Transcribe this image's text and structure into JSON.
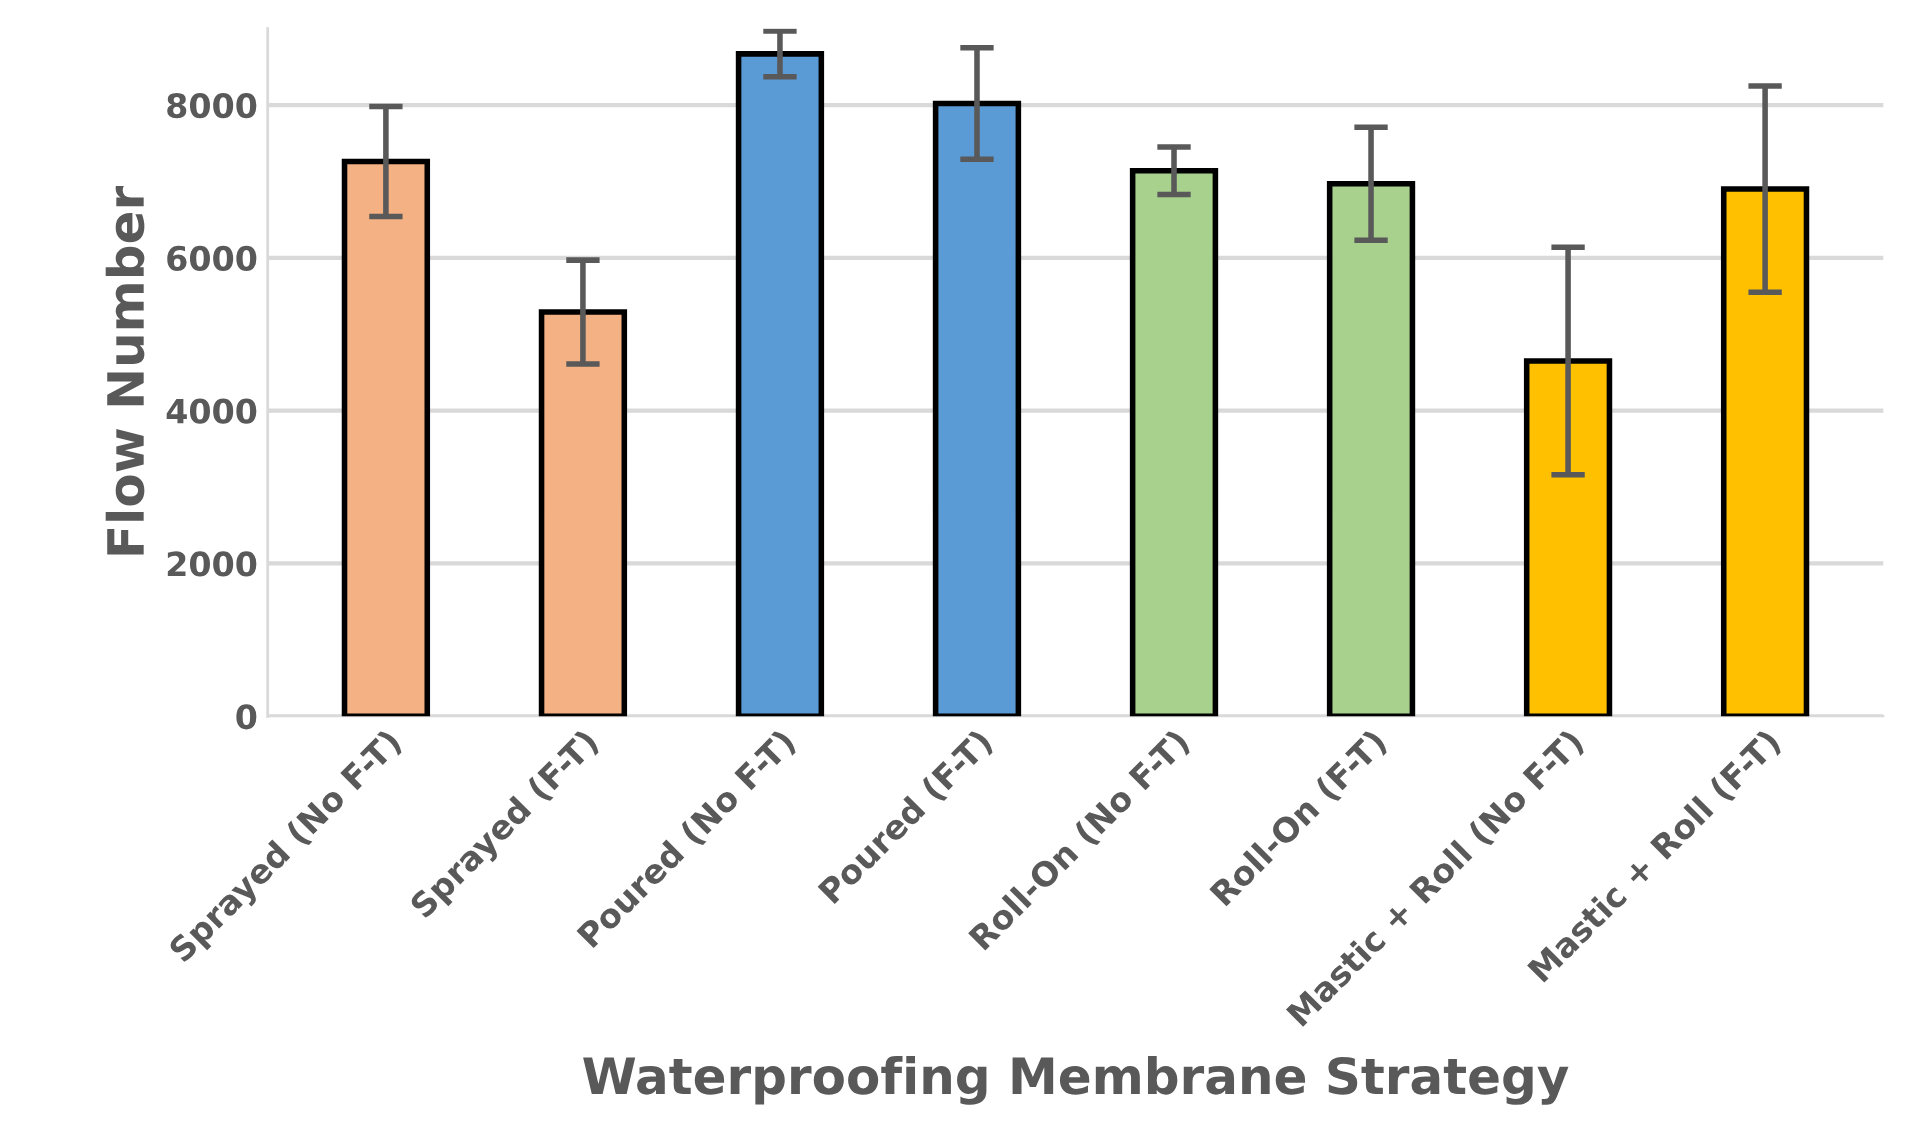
{
  "chart_data": {
    "type": "bar",
    "xlabel": "Waterproofing Membrane Strategy",
    "ylabel": "Flow Number",
    "categories": [
      "Sprayed (No F-T)",
      "Sprayed (F-T)",
      "Poured (No F-T)",
      "Poured (F-T)",
      "Roll-On (No F-T)",
      "Roll-On (F-T)",
      "Mastic + Roll (No F-T)",
      "Mastic + Roll (F-T)"
    ],
    "values": [
      7260,
      5290,
      8670,
      8020,
      7140,
      6970,
      4650,
      6900
    ],
    "errors": [
      720,
      680,
      300,
      730,
      310,
      740,
      1490,
      1350
    ],
    "colors": [
      "#f4b183",
      "#f4b183",
      "#5b9bd5",
      "#5b9bd5",
      "#a9d18e",
      "#a9d18e",
      "#ffc000",
      "#ffc000"
    ],
    "ylim": [
      0,
      9000
    ],
    "yticks": [
      0,
      2000,
      4000,
      6000,
      8000
    ],
    "grid": "y",
    "legend": false
  }
}
